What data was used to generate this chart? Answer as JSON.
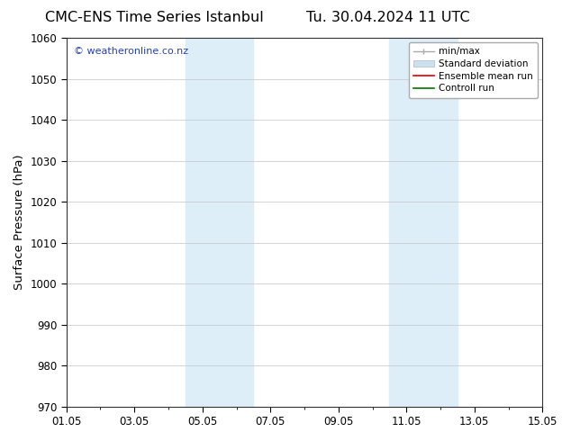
{
  "title_left": "CMC-ENS Time Series Istanbul",
  "title_right": "Tu. 30.04.2024 11 UTC",
  "ylabel": "Surface Pressure (hPa)",
  "ylim": [
    970,
    1060
  ],
  "yticks": [
    970,
    980,
    990,
    1000,
    1010,
    1020,
    1030,
    1040,
    1050,
    1060
  ],
  "xlim": [
    0,
    14
  ],
  "xtick_positions": [
    0,
    2,
    4,
    6,
    8,
    10,
    12,
    14
  ],
  "xtick_labels": [
    "01.05",
    "03.05",
    "05.05",
    "07.05",
    "09.05",
    "11.05",
    "13.05",
    "15.05"
  ],
  "background_color": "#ffffff",
  "plot_bg_color": "#ffffff",
  "shaded_regions": [
    {
      "xstart": 3.5,
      "xend": 5.5,
      "color": "#ddeef8"
    },
    {
      "xstart": 9.5,
      "xend": 11.5,
      "color": "#ddeef8"
    }
  ],
  "watermark_text": "© weatheronline.co.nz",
  "watermark_color": "#2244aa",
  "grid_color": "#cccccc",
  "title_fontsize": 11.5,
  "axis_label_fontsize": 9.5,
  "tick_fontsize": 8.5,
  "legend_fontsize": 7.5
}
